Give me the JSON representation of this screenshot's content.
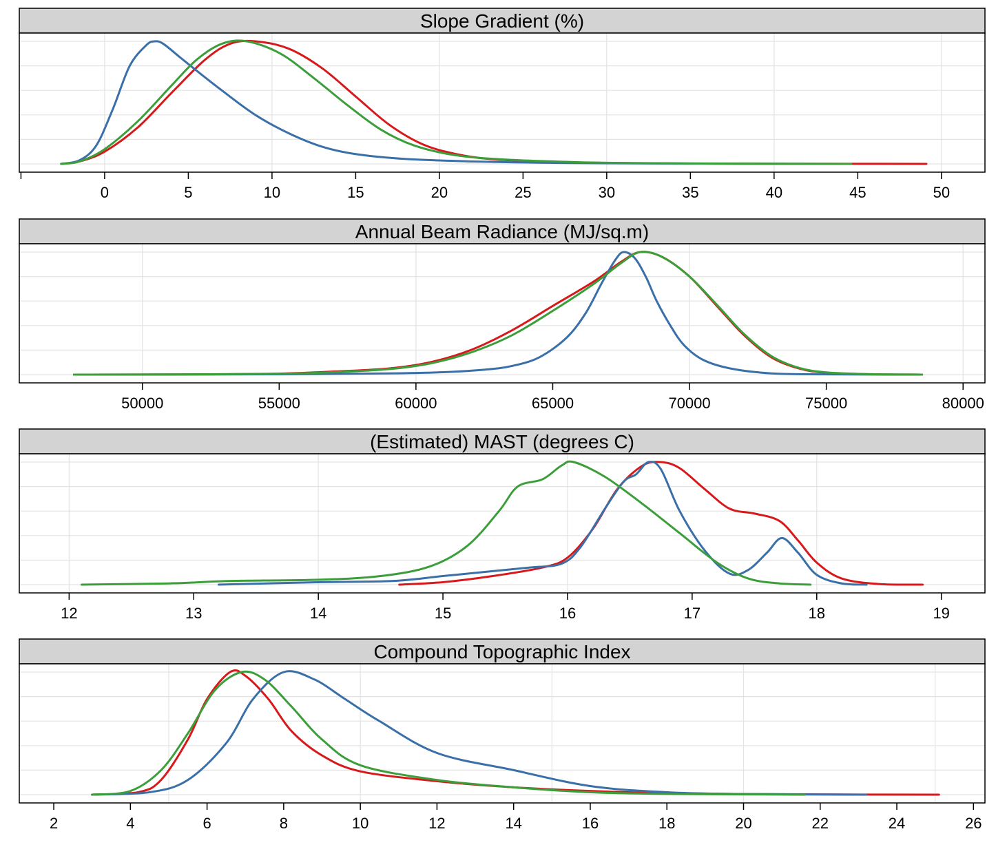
{
  "colors": {
    "red": "#d7191c",
    "blue": "#3a6fa8",
    "green": "#3c9e3a",
    "strip": "#d3d3d3",
    "grid": "#e3e3e3"
  },
  "chart_data": [
    {
      "type": "line",
      "title": "Slope Gradient (%)",
      "xlim": [
        -5.1,
        52.6
      ],
      "xticks": [
        -5,
        0,
        5,
        10,
        15,
        20,
        25,
        30,
        35,
        40,
        45,
        50
      ],
      "xtick_labels": [
        "",
        "0",
        "5",
        "10",
        "15",
        "20",
        "25",
        "30",
        "35",
        "40",
        "45",
        "50"
      ],
      "x_grid": [
        0,
        10,
        20,
        30,
        40,
        50
      ],
      "series": [
        {
          "color": "red",
          "x": [
            -2.6,
            -1.5,
            0,
            2,
            4,
            6,
            7.5,
            9,
            11,
            13,
            15,
            17,
            19,
            21,
            23,
            26,
            30,
            35,
            40,
            45,
            49.1
          ],
          "y": [
            0,
            0.02,
            0.1,
            0.3,
            0.58,
            0.85,
            0.98,
            1.0,
            0.94,
            0.78,
            0.55,
            0.32,
            0.16,
            0.08,
            0.04,
            0.02,
            0.008,
            0.003,
            0.001,
            0.0005,
            0
          ]
        },
        {
          "color": "blue",
          "x": [
            -2.6,
            -1.5,
            -0.5,
            0.5,
            1.5,
            2.5,
            3,
            3.5,
            4.5,
            5.5,
            7,
            9,
            11,
            13,
            15,
            18,
            22,
            26,
            30,
            35,
            40,
            44.6
          ],
          "y": [
            0,
            0.03,
            0.15,
            0.45,
            0.8,
            0.97,
            1.0,
            0.98,
            0.87,
            0.76,
            0.6,
            0.4,
            0.25,
            0.14,
            0.08,
            0.04,
            0.02,
            0.01,
            0.005,
            0.002,
            0.001,
            0
          ]
        },
        {
          "color": "green",
          "x": [
            -2.6,
            -1.5,
            0,
            2,
            4,
            5.5,
            7,
            8.5,
            10.5,
            12.5,
            14.5,
            16.5,
            18.5,
            21,
            24,
            28,
            32,
            38,
            44.6
          ],
          "y": [
            0,
            0.02,
            0.12,
            0.35,
            0.64,
            0.85,
            0.98,
            1.0,
            0.9,
            0.7,
            0.48,
            0.28,
            0.15,
            0.07,
            0.035,
            0.015,
            0.006,
            0.002,
            0
          ]
        }
      ]
    },
    {
      "type": "line",
      "title": "Annual Beam Radiance (MJ/sq.m)",
      "xlim": [
        45500,
        80800
      ],
      "xticks": [
        50000,
        55000,
        60000,
        65000,
        70000,
        75000,
        80000
      ],
      "xtick_labels": [
        "50000",
        "55000",
        "60000",
        "65000",
        "70000",
        "75000",
        "80000"
      ],
      "x_grid": [
        50000,
        60000,
        70000,
        80000
      ],
      "series": [
        {
          "color": "red",
          "x": [
            47500,
            52000,
            55000,
            57000,
            59000,
            60500,
            62000,
            63500,
            65000,
            66500,
            67500,
            68200,
            69000,
            70000,
            71000,
            72000,
            73000,
            74000,
            75000,
            76500,
            78500
          ],
          "y": [
            0,
            0.002,
            0.008,
            0.025,
            0.05,
            0.1,
            0.2,
            0.36,
            0.56,
            0.76,
            0.92,
            1.0,
            0.96,
            0.8,
            0.56,
            0.32,
            0.14,
            0.05,
            0.015,
            0.003,
            0
          ]
        },
        {
          "color": "blue",
          "x": [
            47500,
            55000,
            59000,
            61000,
            62500,
            63500,
            64500,
            65500,
            66200,
            66800,
            67300,
            67600,
            68000,
            68400,
            68800,
            69300,
            69800,
            70500,
            71500,
            73000,
            75000,
            78500
          ],
          "y": [
            0,
            0.002,
            0.01,
            0.02,
            0.04,
            0.07,
            0.14,
            0.3,
            0.5,
            0.75,
            0.94,
            1.0,
            0.95,
            0.8,
            0.6,
            0.4,
            0.24,
            0.12,
            0.05,
            0.01,
            0.002,
            0
          ]
        },
        {
          "color": "green",
          "x": [
            47500,
            52000,
            55000,
            57000,
            59000,
            60500,
            62000,
            63500,
            65000,
            66500,
            67500,
            68200,
            69000,
            70000,
            71000,
            72000,
            73000,
            74000,
            75000,
            76500,
            78500
          ],
          "y": [
            0,
            0.002,
            0.007,
            0.02,
            0.045,
            0.09,
            0.18,
            0.32,
            0.52,
            0.74,
            0.91,
            1.0,
            0.96,
            0.8,
            0.57,
            0.33,
            0.15,
            0.055,
            0.018,
            0.004,
            0
          ]
        }
      ]
    },
    {
      "type": "line",
      "title": "(Estimated) MAST (degrees C)",
      "xlim": [
        11.6,
        19.35
      ],
      "xticks": [
        12,
        13,
        14,
        15,
        16,
        17,
        18,
        19
      ],
      "xtick_labels": [
        "12",
        "13",
        "14",
        "15",
        "16",
        "17",
        "18",
        "19"
      ],
      "x_grid": [
        12,
        14,
        16,
        18
      ],
      "series": [
        {
          "color": "red",
          "x": [
            14.65,
            15.0,
            15.4,
            15.8,
            16.0,
            16.2,
            16.4,
            16.6,
            16.75,
            16.9,
            17.1,
            17.3,
            17.5,
            17.7,
            17.85,
            18.0,
            18.2,
            18.5,
            18.85
          ],
          "y": [
            0,
            0.02,
            0.07,
            0.14,
            0.22,
            0.45,
            0.78,
            0.97,
            1.0,
            0.95,
            0.78,
            0.62,
            0.58,
            0.52,
            0.36,
            0.18,
            0.05,
            0.005,
            0
          ]
        },
        {
          "color": "blue",
          "x": [
            13.2,
            14.0,
            14.6,
            15.0,
            15.4,
            15.7,
            15.95,
            16.1,
            16.3,
            16.45,
            16.55,
            16.65,
            16.75,
            16.9,
            17.1,
            17.3,
            17.45,
            17.6,
            17.72,
            17.85,
            18.0,
            18.2,
            18.4
          ],
          "y": [
            0,
            0.02,
            0.03,
            0.07,
            0.11,
            0.14,
            0.17,
            0.3,
            0.62,
            0.84,
            0.9,
            1.0,
            0.94,
            0.6,
            0.28,
            0.09,
            0.12,
            0.26,
            0.38,
            0.26,
            0.08,
            0.01,
            0
          ]
        },
        {
          "color": "green",
          "x": [
            12.1,
            12.8,
            13.3,
            14.0,
            14.5,
            14.9,
            15.2,
            15.45,
            15.6,
            15.8,
            15.95,
            16.05,
            16.3,
            16.6,
            16.9,
            17.2,
            17.45,
            17.7,
            17.95
          ],
          "y": [
            0,
            0.01,
            0.03,
            0.04,
            0.07,
            0.15,
            0.32,
            0.6,
            0.8,
            0.86,
            0.97,
            1.0,
            0.88,
            0.66,
            0.42,
            0.18,
            0.05,
            0.01,
            0
          ]
        }
      ]
    },
    {
      "type": "line",
      "title": "Compound Topographic Index",
      "xlim": [
        1.1,
        26.3
      ],
      "xticks": [
        2,
        4,
        6,
        8,
        10,
        12,
        14,
        16,
        18,
        20,
        22,
        24,
        26
      ],
      "xtick_labels": [
        "2",
        "4",
        "6",
        "8",
        "10",
        "12",
        "14",
        "16",
        "18",
        "20",
        "22",
        "24",
        "26"
      ],
      "x_grid": [
        5,
        10,
        15,
        20,
        25
      ],
      "series": [
        {
          "color": "red",
          "x": [
            3.0,
            4.2,
            4.8,
            5.5,
            6.0,
            6.6,
            7.0,
            7.6,
            8.2,
            9.0,
            10.0,
            12.0,
            14.0,
            16.0,
            18.0,
            20.0,
            23.0,
            25.1
          ],
          "y": [
            0,
            0.02,
            0.12,
            0.45,
            0.78,
            1.0,
            0.97,
            0.78,
            0.52,
            0.32,
            0.19,
            0.11,
            0.06,
            0.03,
            0.012,
            0.005,
            0.001,
            0
          ]
        },
        {
          "color": "blue",
          "x": [
            3.0,
            4.5,
            5.5,
            6.5,
            7.2,
            8.0,
            8.8,
            9.6,
            10.5,
            12.0,
            14.0,
            16.0,
            18.0,
            20.0,
            23.2
          ],
          "y": [
            0,
            0.02,
            0.12,
            0.42,
            0.78,
            1.0,
            0.94,
            0.78,
            0.6,
            0.34,
            0.2,
            0.07,
            0.02,
            0.005,
            0
          ]
        },
        {
          "color": "green",
          "x": [
            3.0,
            4.0,
            4.8,
            5.5,
            6.2,
            6.9,
            7.5,
            8.2,
            9.0,
            10.0,
            12.0,
            14.0,
            16.0,
            18.0,
            21.6
          ],
          "y": [
            0,
            0.03,
            0.2,
            0.5,
            0.85,
            1.0,
            0.94,
            0.72,
            0.45,
            0.24,
            0.12,
            0.06,
            0.02,
            0.006,
            0
          ]
        }
      ]
    }
  ]
}
